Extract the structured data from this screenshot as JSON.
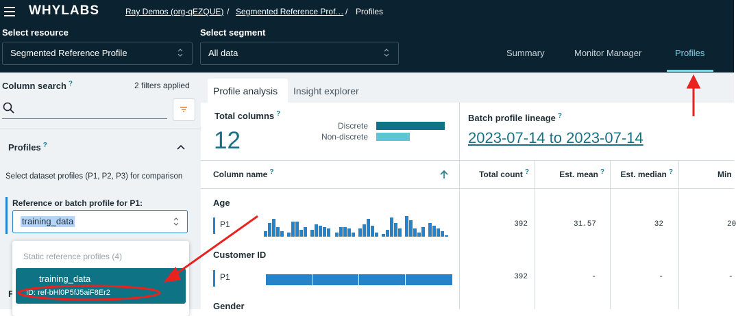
{
  "header": {
    "logo": "WHYLABS",
    "breadcrumbs": [
      "Ray Demos (org-qEZQUE)",
      "Segmented Reference Prof…",
      "Profiles"
    ],
    "separator": "/"
  },
  "selectors": [
    {
      "label": "Select resource",
      "value": "Segmented Reference Profile"
    },
    {
      "label": "Select segment",
      "value": "All data"
    }
  ],
  "nav_tabs": [
    "Summary",
    "Monitor Manager",
    "Profiles"
  ],
  "help_icon": "?",
  "sidebar": {
    "column_search": "Column search",
    "filters_applied": "2 filters applied",
    "profiles_title": "Profiles",
    "instructions": "Select dataset profiles (P1, P2, P3) for comparison",
    "p1_label": "Reference or batch profile for P1:",
    "p1_value": "training_data",
    "dropdown": {
      "group": "Static reference profiles (4)",
      "item_name": "training_data",
      "item_id": "ID: ref-bHl0P5fJ5aiF8Er2"
    },
    "next_section_initial": "F"
  },
  "main_tabs": [
    "Profile analysis",
    "Insight explorer"
  ],
  "summary": {
    "total_columns_label": "Total columns",
    "total_columns": 12,
    "legend": [
      "Discrete",
      "Non-discrete"
    ],
    "lineage_label": "Batch profile lineage",
    "lineage_range": "2023-07-14 to 2023-07-14"
  },
  "table": {
    "columns": [
      "Column name",
      "Total count",
      "Est. mean",
      "Est. median",
      "Min"
    ],
    "rows": [
      {
        "name": "Age",
        "profile": "P1",
        "cells": [
          392,
          31.57,
          32,
          20
        ]
      },
      {
        "name": "Customer ID",
        "profile": "P1",
        "cells": [
          392,
          "-",
          "-",
          "-"
        ]
      },
      {
        "name": "Gender"
      }
    ]
  }
}
